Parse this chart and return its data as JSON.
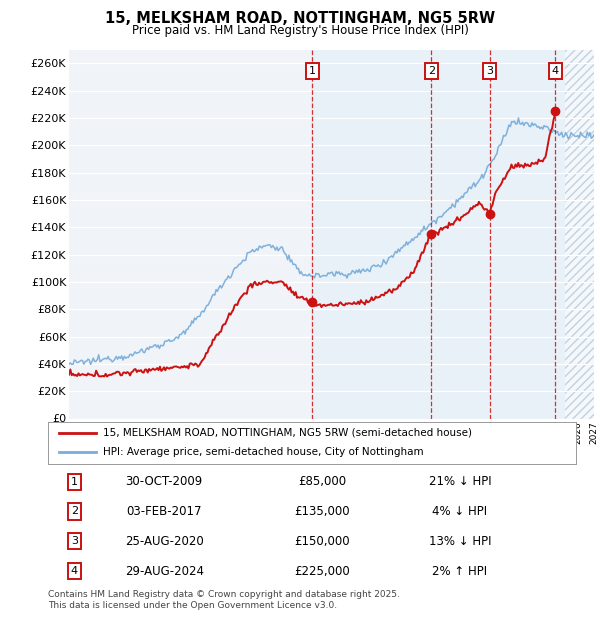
{
  "title": "15, MELKSHAM ROAD, NOTTINGHAM, NG5 5RW",
  "subtitle": "Price paid vs. HM Land Registry's House Price Index (HPI)",
  "ylim": [
    0,
    270000
  ],
  "yticks": [
    0,
    20000,
    40000,
    60000,
    80000,
    100000,
    120000,
    140000,
    160000,
    180000,
    200000,
    220000,
    240000,
    260000
  ],
  "ytick_labels": [
    "£0",
    "£20K",
    "£40K",
    "£60K",
    "£80K",
    "£100K",
    "£120K",
    "£140K",
    "£160K",
    "£180K",
    "£200K",
    "£220K",
    "£240K",
    "£260K"
  ],
  "background_color": "#ffffff",
  "plot_bg_color": "#e8f0f8",
  "grid_color": "#ffffff",
  "hpi_color": "#7aaddb",
  "red_color": "#cc1111",
  "shade_start": 2009.75,
  "future_start": 2025.25,
  "transactions": [
    {
      "num": 1,
      "date": "30-OCT-2009",
      "price": "£85,000",
      "hpi": "21% ↓ HPI",
      "year": 2009.83
    },
    {
      "num": 2,
      "date": "03-FEB-2017",
      "price": "£135,000",
      "hpi": "4% ↓ HPI",
      "year": 2017.09
    },
    {
      "num": 3,
      "date": "25-AUG-2020",
      "price": "£150,000",
      "hpi": "13% ↓ HPI",
      "year": 2020.65
    },
    {
      "num": 4,
      "date": "29-AUG-2024",
      "price": "£225,000",
      "hpi": "2% ↑ HPI",
      "year": 2024.65
    }
  ],
  "sale_prices": [
    85000,
    135000,
    150000,
    225000
  ],
  "sale_years": [
    2009.83,
    2017.09,
    2020.65,
    2024.65
  ],
  "legend_red": "15, MELKSHAM ROAD, NOTTINGHAM, NG5 5RW (semi-detached house)",
  "legend_blue": "HPI: Average price, semi-detached house, City of Nottingham",
  "footer": "Contains HM Land Registry data © Crown copyright and database right 2025.\nThis data is licensed under the Open Government Licence v3.0.",
  "xmin": 1995,
  "xmax": 2027
}
